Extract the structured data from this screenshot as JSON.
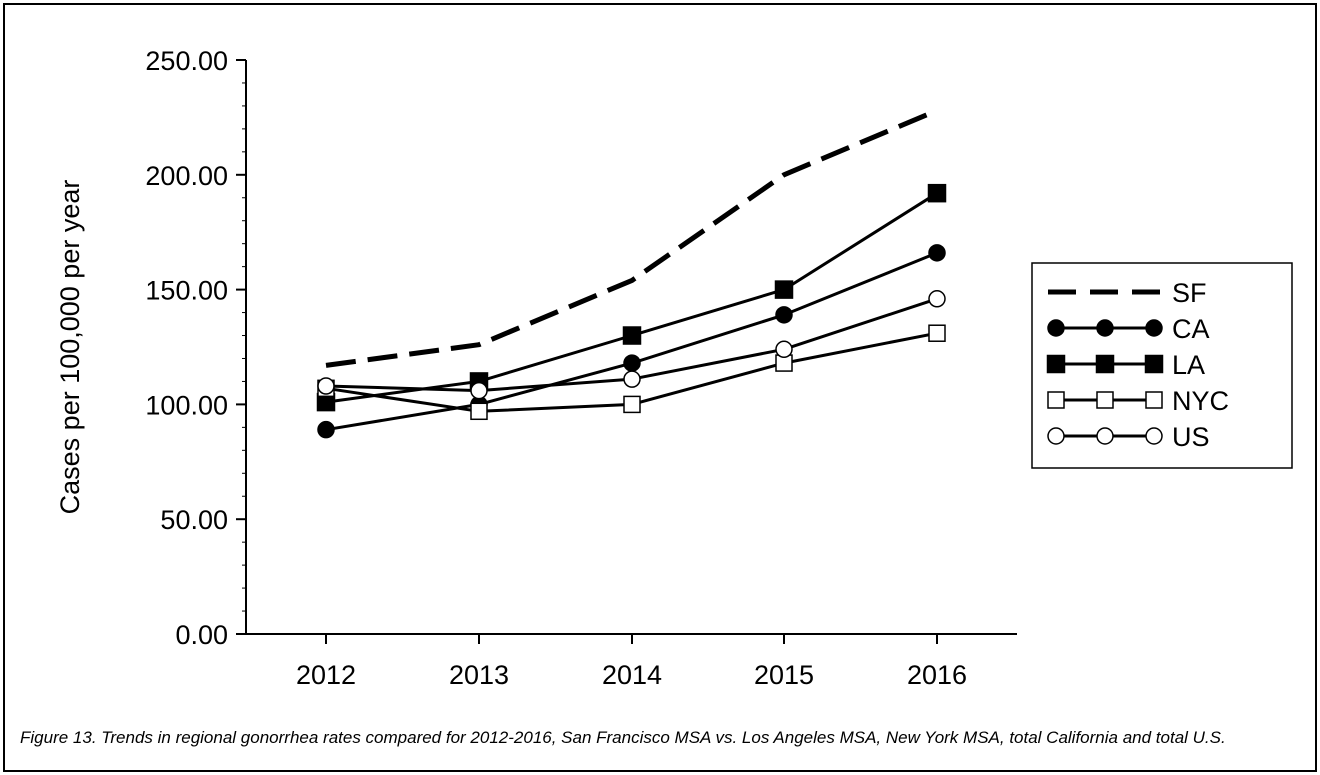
{
  "chart_data": {
    "type": "line",
    "title": "",
    "xlabel": "",
    "ylabel": "Cases per 100,000 per year",
    "categories": [
      "2012",
      "2013",
      "2014",
      "2015",
      "2016"
    ],
    "ylim": [
      0,
      250
    ],
    "yticks": [
      "0.00",
      "50.00",
      "100.00",
      "150.00",
      "200.00",
      "250.00"
    ],
    "grid": false,
    "legend_position": "right",
    "series": [
      {
        "name": "SF",
        "values": [
          117,
          126,
          154,
          200,
          228
        ],
        "style": "dashed",
        "marker": "none"
      },
      {
        "name": "CA",
        "values": [
          89,
          100,
          118,
          139,
          166
        ],
        "style": "solid",
        "marker": "filled-circle"
      },
      {
        "name": "LA",
        "values": [
          101,
          110,
          130,
          150,
          192
        ],
        "style": "solid",
        "marker": "filled-square"
      },
      {
        "name": "NYC",
        "values": [
          107,
          97,
          100,
          118,
          131
        ],
        "style": "solid",
        "marker": "open-square"
      },
      {
        "name": "US",
        "values": [
          108,
          106,
          111,
          124,
          146
        ],
        "style": "solid",
        "marker": "open-circle"
      }
    ]
  },
  "caption": "Figure 13.  Trends in regional gonorrhea rates compared for 2012-2016, San Francisco MSA vs. Los Angeles MSA, New York MSA, total California and total U.S."
}
